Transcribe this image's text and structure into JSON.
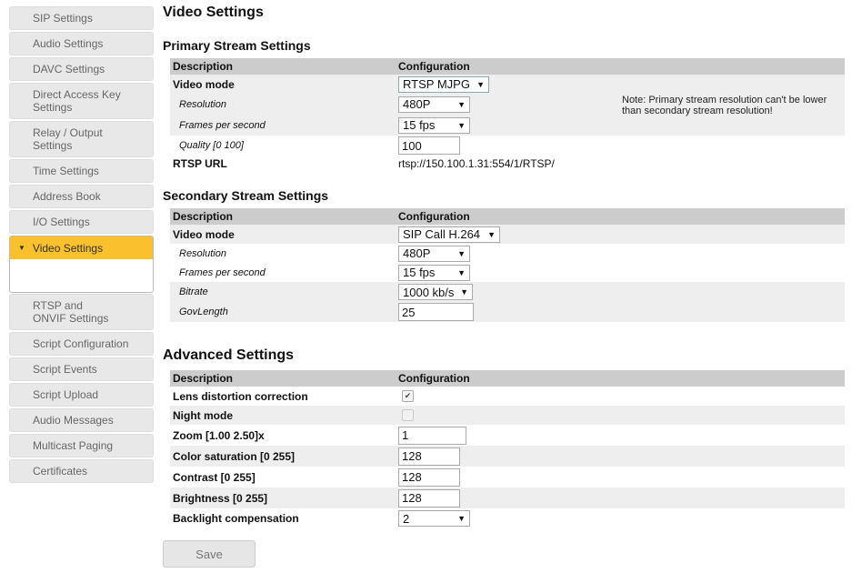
{
  "sidebar": {
    "items": [
      {
        "label": "SIP Settings"
      },
      {
        "label": "Audio Settings"
      },
      {
        "label": "DAVC Settings"
      },
      {
        "label": "Direct Access Key Settings"
      },
      {
        "label": "Relay / Output Settings"
      },
      {
        "label": "Time Settings"
      },
      {
        "label": "Address Book"
      },
      {
        "label": "I/O Settings"
      },
      {
        "label": "Video Settings",
        "active": true
      },
      {
        "label": "RTSP and ONVIF Settings"
      },
      {
        "label": "Script Configuration"
      },
      {
        "label": "Script Events"
      },
      {
        "label": "Script Upload"
      },
      {
        "label": "Audio Messages"
      },
      {
        "label": "Multicast Paging"
      },
      {
        "label": "Certificates"
      }
    ],
    "accent": "#fbc02d"
  },
  "page_title": "Video Settings",
  "headers": {
    "description": "Description",
    "configuration": "Configuration"
  },
  "primary": {
    "title": "Primary Stream Settings",
    "video_mode": {
      "label": "Video mode",
      "value": "RTSP MJPG"
    },
    "resolution": {
      "label": "Resolution",
      "value": "480P"
    },
    "fps": {
      "label": "Frames per second",
      "value": "15 fps"
    },
    "quality": {
      "label": "Quality [0 100]",
      "value": "100"
    },
    "rtsp_url": {
      "label": "RTSP URL",
      "value": "rtsp://150.100.1.31:554/1/RTSP/"
    },
    "note": "Note: Primary stream resolution can't be lower than secondary stream resolution!"
  },
  "secondary": {
    "title": "Secondary Stream Settings",
    "video_mode": {
      "label": "Video mode",
      "value": "SIP Call H.264"
    },
    "resolution": {
      "label": "Resolution",
      "value": "480P"
    },
    "fps": {
      "label": "Frames per second",
      "value": "15 fps"
    },
    "bitrate": {
      "label": "Bitrate",
      "value": "1000 kb/s"
    },
    "govlength": {
      "label": "GovLength",
      "value": "25"
    }
  },
  "advanced": {
    "title": "Advanced Settings",
    "lens": {
      "label": "Lens distortion correction",
      "checked": true
    },
    "night": {
      "label": "Night mode",
      "checked": false
    },
    "zoom": {
      "label": "Zoom [1.00 2.50]x",
      "value": "1"
    },
    "saturation": {
      "label": "Color saturation [0 255]",
      "value": "128"
    },
    "contrast": {
      "label": "Contrast [0 255]",
      "value": "128"
    },
    "brightness": {
      "label": "Brightness [0 255]",
      "value": "128"
    },
    "backlight": {
      "label": "Backlight compensation",
      "value": "2"
    }
  },
  "save_label": "Save"
}
